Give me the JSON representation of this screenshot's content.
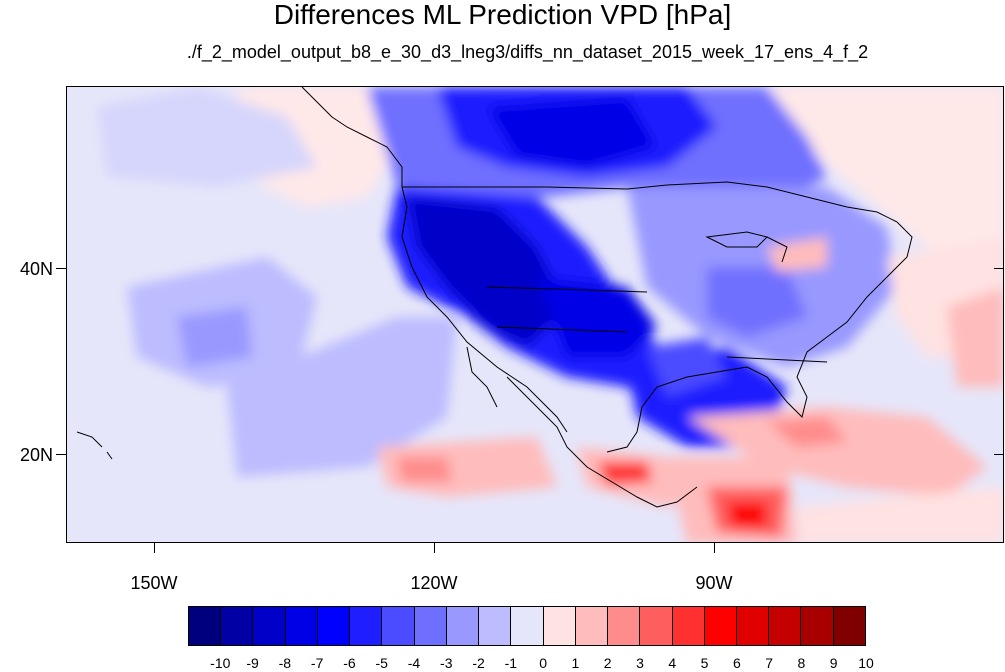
{
  "title": "Differences ML Prediction VPD [hPa]",
  "subtitle": "./f_2_model_output_b8_e_30_d3_lneg3/diffs_nn_dataset_2015_week_17_ens_4_f_2",
  "axes": {
    "y_labels": [
      "40N",
      "20N"
    ],
    "x_labels": [
      "150W",
      "120W",
      "90W"
    ]
  },
  "legend": {
    "labels": [
      "-10",
      "-9",
      "-8",
      "-7",
      "-6",
      "-5",
      "-4",
      "-3",
      "-2",
      "-1",
      "0",
      "1",
      "2",
      "3",
      "4",
      "5",
      "6",
      "7",
      "8",
      "9",
      "10"
    ],
    "colors": [
      "#00007f",
      "#0000a5",
      "#0000c8",
      "#0000e6",
      "#0000ff",
      "#1e1eff",
      "#4b4bff",
      "#6f6fff",
      "#9898ff",
      "#bcbcff",
      "#e6e6fa",
      "#ffe2e2",
      "#ffbcbc",
      "#ff8c8c",
      "#ff5e5e",
      "#ff3030",
      "#ff0000",
      "#e00000",
      "#c40000",
      "#a80000",
      "#800000"
    ]
  }
}
